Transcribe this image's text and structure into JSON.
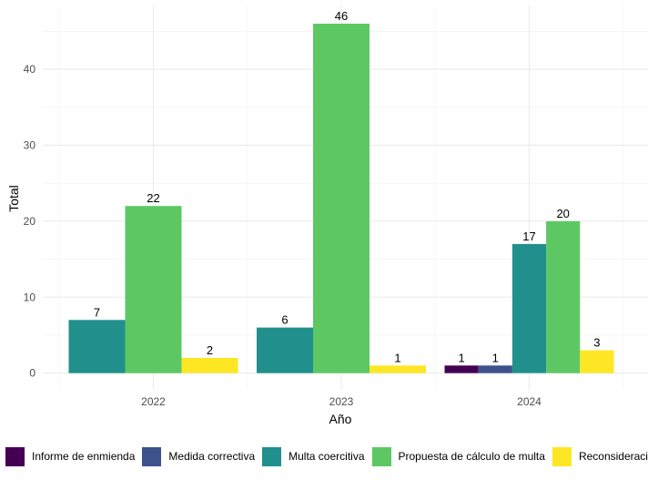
{
  "chart_data": {
    "type": "bar",
    "title": "",
    "xlabel": "Año",
    "ylabel": "Total",
    "categories": [
      "2022",
      "2023",
      "2024"
    ],
    "ylim": [
      -2.2,
      48.4
    ],
    "yticks": [
      0,
      10,
      20,
      30,
      40
    ],
    "grid": true,
    "legend_position": "bottom",
    "series": [
      {
        "name": "Informe de enmienda",
        "color": "#440154",
        "values": [
          null,
          null,
          1
        ]
      },
      {
        "name": "Medida correctiva",
        "color": "#3B528B",
        "values": [
          null,
          null,
          1
        ]
      },
      {
        "name": "Multa coercitiva",
        "color": "#21908C",
        "values": [
          7,
          6,
          17
        ]
      },
      {
        "name": "Propuesta de cálculo de multa",
        "color": "#5DC863",
        "values": [
          22,
          46,
          20
        ]
      },
      {
        "name": "Reconsideración",
        "color": "#FDE725",
        "values": [
          2,
          1,
          3
        ]
      }
    ]
  }
}
